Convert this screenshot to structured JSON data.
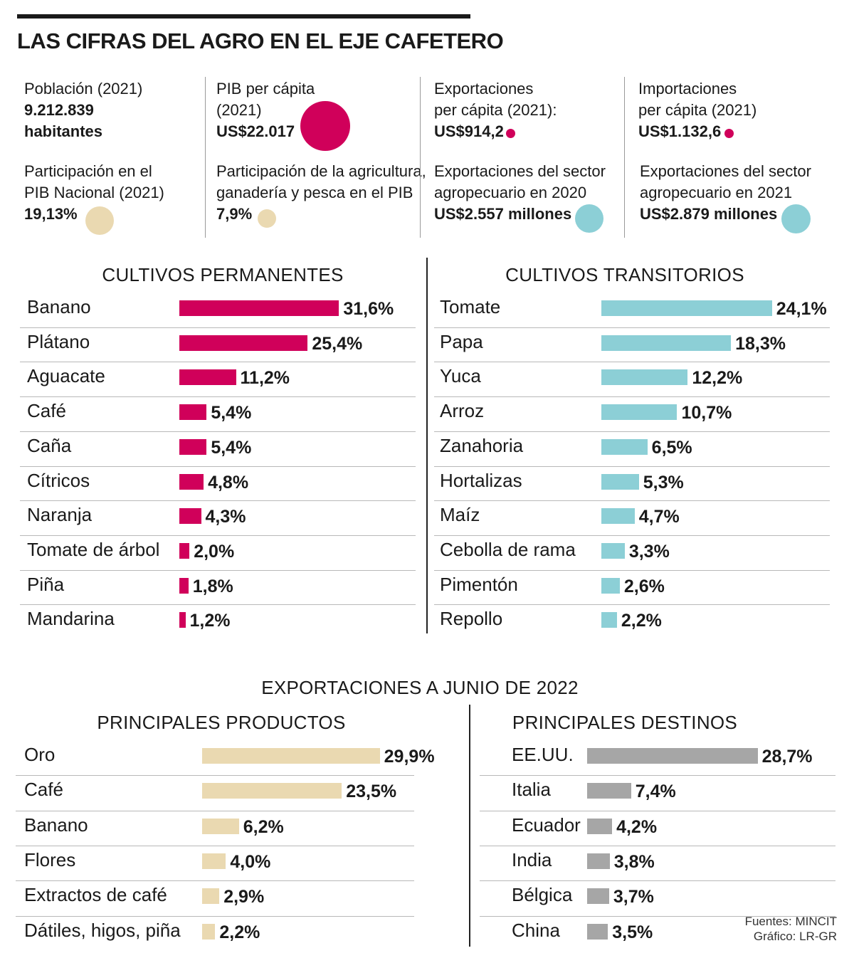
{
  "title": "LAS CIFRAS DEL AGRO EN EL EJE CAFETERO",
  "colors": {
    "magenta": "#d0005a",
    "cyan": "#8ccfd6",
    "beige": "#ead9b1",
    "gray": "#a6a6a6",
    "text": "#1a1a1a"
  },
  "stats": {
    "poblacion": {
      "label": "Población (2021)",
      "value": "9.212.839",
      "unit": "habitantes"
    },
    "participacion": {
      "label1": "Participación en el",
      "label2": "PIB Nacional (2021)",
      "value": "19,13%"
    },
    "pib": {
      "label1": "PIB per cápita",
      "label2": "(2021)",
      "value": "US$22.017"
    },
    "agri": {
      "label1": "Participación de la agricultura,",
      "label2": "ganadería y pesca en el PIB",
      "value": "7,9%"
    },
    "export": {
      "label1": "Exportaciones",
      "label2": "per cápita (2021):",
      "value": "US$914,2"
    },
    "export2020": {
      "label1": "Exportaciones del sector",
      "label2": "agropecuario en 2020",
      "value": "US$2.557 millones"
    },
    "import": {
      "label1": "Importaciones",
      "label2": "per cápita (2021)",
      "value": "US$1.132,6"
    },
    "export2021": {
      "label1": "Exportaciones del sector",
      "label2": "agropecuario en 2021",
      "value": "US$2.879 millones"
    }
  },
  "sections": {
    "permanentes": "CULTIVOS PERMANENTES",
    "transitorios": "CULTIVOS TRANSITORIOS",
    "exportaciones": "EXPORTACIONES A JUNIO DE 2022",
    "productos": "PRINCIPALES PRODUCTOS",
    "destinos": "PRINCIPALES DESTINOS"
  },
  "source": {
    "line1": "Fuentes: MINCIT",
    "line2": "Gráfico: LR-GR"
  },
  "chart_data": [
    {
      "type": "bar",
      "title": "CULTIVOS PERMANENTES",
      "orientation": "horizontal",
      "color": "#d0005a",
      "categories": [
        "Banano",
        "Plátano",
        "Aguacate",
        "Café",
        "Caña",
        "Cítricos",
        "Naranja",
        "Tomate de árbol",
        "Piña",
        "Mandarina"
      ],
      "values": [
        31.6,
        25.4,
        11.2,
        5.4,
        5.4,
        4.8,
        4.3,
        2.0,
        1.8,
        1.2
      ],
      "labels": [
        "31,6%",
        "25,4%",
        "11,2%",
        "5,4%",
        "5,4%",
        "4,8%",
        "4,3%",
        "2,0%",
        "1,8%",
        "1,2%"
      ]
    },
    {
      "type": "bar",
      "title": "CULTIVOS TRANSITORIOS",
      "orientation": "horizontal",
      "color": "#8ccfd6",
      "categories": [
        "Tomate",
        "Papa",
        "Yuca",
        "Arroz",
        "Zanahoria",
        "Hortalizas",
        "Maíz",
        "Cebolla de rama",
        "Pimentón",
        "Repollo"
      ],
      "values": [
        24.1,
        18.3,
        12.2,
        10.7,
        6.5,
        5.3,
        4.7,
        3.3,
        2.6,
        2.2
      ],
      "labels": [
        "24,1%",
        "18,3%",
        "12,2%",
        "10,7%",
        "6,5%",
        "5,3%",
        "4,7%",
        "3,3%",
        "2,6%",
        "2,2%"
      ]
    },
    {
      "type": "bar",
      "title": "PRINCIPALES PRODUCTOS",
      "orientation": "horizontal",
      "color": "#ead9b1",
      "categories": [
        "Oro",
        "Café",
        "Banano",
        "Flores",
        "Extractos de café",
        "Dátiles, higos, piña"
      ],
      "values": [
        29.9,
        23.5,
        6.2,
        4.0,
        2.9,
        2.2
      ],
      "labels": [
        "29,9%",
        "23,5%",
        "6,2%",
        "4,0%",
        "2,9%",
        "2,2%"
      ]
    },
    {
      "type": "bar",
      "title": "PRINCIPALES DESTINOS",
      "orientation": "horizontal",
      "color": "#a6a6a6",
      "categories": [
        "EE.UU.",
        "Italia",
        "Ecuador",
        "India",
        "Bélgica",
        "China"
      ],
      "values": [
        28.7,
        7.4,
        4.2,
        3.8,
        3.7,
        3.5
      ],
      "labels": [
        "28,7%",
        "7,4%",
        "4,2%",
        "3,8%",
        "3,7%",
        "3,5%"
      ]
    }
  ]
}
